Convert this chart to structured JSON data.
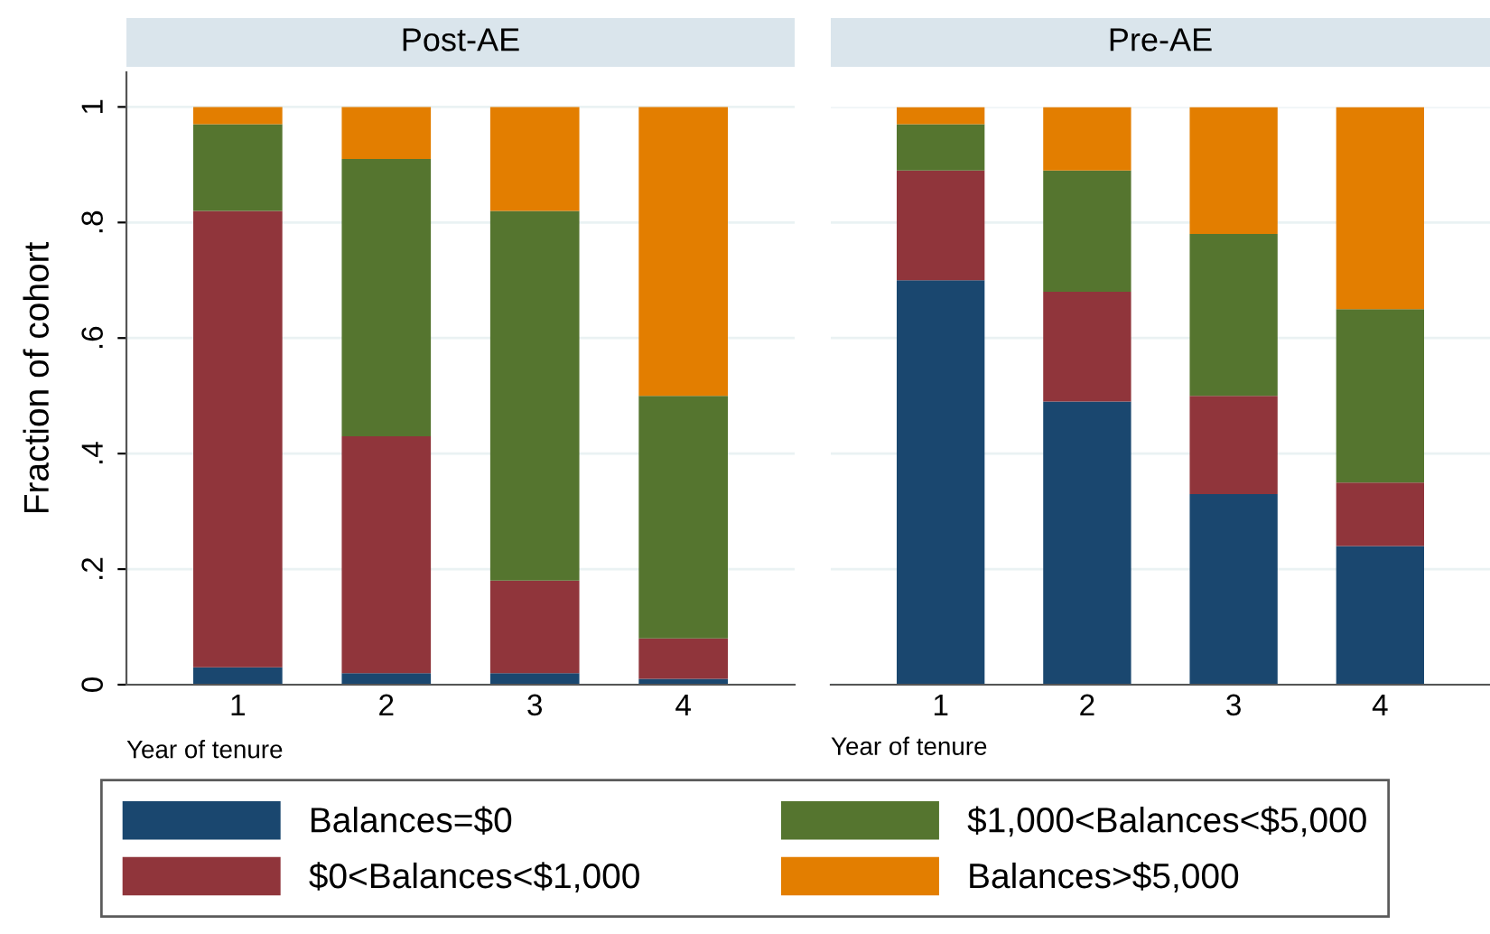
{
  "chart_data": [
    {
      "type": "bar",
      "stacked": true,
      "title": "Post-AE",
      "xlabel": "Year of tenure",
      "ylabel": "Fraction of cohort",
      "categories": [
        "1",
        "2",
        "3",
        "4"
      ],
      "series": [
        {
          "name": "Balances=$0",
          "color": "#1a476f",
          "values": [
            0.03,
            0.02,
            0.02,
            0.01
          ]
        },
        {
          "name": "$0<Balances<$1,000",
          "color": "#90353b",
          "values": [
            0.79,
            0.41,
            0.16,
            0.07
          ]
        },
        {
          "name": "$1,000<Balances<$5,000",
          "color": "#55752f",
          "values": [
            0.15,
            0.48,
            0.64,
            0.42
          ]
        },
        {
          "name": "Balances>$5,000",
          "color": "#e37e00",
          "values": [
            0.03,
            0.09,
            0.18,
            0.5
          ]
        }
      ],
      "ylim": [
        0,
        1.06
      ],
      "yticks": [
        0,
        {
          "value": 0.2,
          "label": ".2"
        },
        {
          "value": 0.4,
          "label": ".4"
        },
        {
          "value": 0.6,
          "label": ".6"
        },
        {
          "value": 0.8,
          "label": ".8"
        },
        1
      ],
      "grid": "y",
      "legend": "bottom"
    },
    {
      "type": "bar",
      "stacked": true,
      "title": "Pre-AE",
      "xlabel": "Year of tenure",
      "categories": [
        "1",
        "2",
        "3",
        "4"
      ],
      "series": [
        {
          "color": "#1a476f",
          "values": [
            0.7,
            0.49,
            0.33,
            0.24
          ]
        },
        {
          "color": "#90353b",
          "values": [
            0.19,
            0.19,
            0.17,
            0.11
          ]
        },
        {
          "color": "#55752f",
          "values": [
            0.08,
            0.21,
            0.28,
            0.3
          ]
        },
        {
          "color": "#e37e00",
          "values": [
            0.03,
            0.11,
            0.22,
            0.35
          ]
        }
      ],
      "ylim": [
        0,
        1
      ],
      "yticks": [
        0,
        0.2,
        0.4,
        0.6,
        0.8,
        1
      ],
      "grid": "y",
      "tick_labels": "x"
    }
  ]
}
